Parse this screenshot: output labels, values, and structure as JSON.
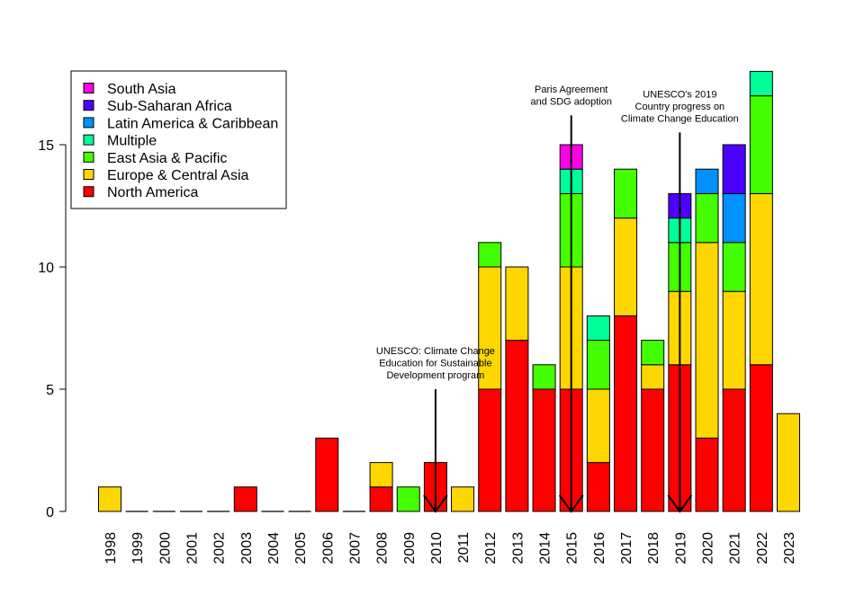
{
  "chart_data": {
    "type": "bar",
    "stacked": true,
    "title": "",
    "xlabel": "",
    "ylabel": "",
    "ylim": [
      0,
      18
    ],
    "y_ticks": [
      0,
      5,
      10,
      15
    ],
    "grid": false,
    "legend_position": "top-left",
    "categories": [
      "1998",
      "1999",
      "2000",
      "2001",
      "2002",
      "2003",
      "2004",
      "2005",
      "2006",
      "2007",
      "2008",
      "2009",
      "2010",
      "2011",
      "2012",
      "2013",
      "2014",
      "2015",
      "2016",
      "2017",
      "2018",
      "2019",
      "2020",
      "2021",
      "2022",
      "2023"
    ],
    "series": [
      {
        "name": "North America",
        "color": "#FF0000",
        "values": [
          0,
          0,
          0,
          0,
          0,
          1,
          0,
          0,
          3,
          0,
          1,
          0,
          2,
          0,
          5,
          7,
          5,
          5,
          2,
          8,
          5,
          6,
          3,
          5,
          6,
          0
        ]
      },
      {
        "name": "Europe & Central Asia",
        "color": "#FFD700",
        "values": [
          1,
          0,
          0,
          0,
          0,
          0,
          0,
          0,
          0,
          0,
          1,
          0,
          0,
          1,
          5,
          3,
          0,
          5,
          3,
          4,
          1,
          3,
          8,
          4,
          7,
          4
        ]
      },
      {
        "name": "East Asia & Pacific",
        "color": "#44FF00",
        "values": [
          0,
          0,
          0,
          0,
          0,
          0,
          0,
          0,
          0,
          0,
          0,
          1,
          0,
          0,
          1,
          0,
          1,
          3,
          2,
          2,
          1,
          2,
          2,
          2,
          4,
          0
        ]
      },
      {
        "name": "Multiple",
        "color": "#00FF99",
        "values": [
          0,
          0,
          0,
          0,
          0,
          0,
          0,
          0,
          0,
          0,
          0,
          0,
          0,
          0,
          0,
          0,
          0,
          1,
          1,
          0,
          0,
          1,
          0,
          0,
          1,
          0
        ]
      },
      {
        "name": "Latin America & Caribbean",
        "color": "#0091FF",
        "values": [
          0,
          0,
          0,
          0,
          0,
          0,
          0,
          0,
          0,
          0,
          0,
          0,
          0,
          0,
          0,
          0,
          0,
          0,
          0,
          0,
          0,
          0,
          1,
          2,
          0,
          0
        ]
      },
      {
        "name": "Sub-Saharan Africa",
        "color": "#4C00FF",
        "values": [
          0,
          0,
          0,
          0,
          0,
          0,
          0,
          0,
          0,
          0,
          0,
          0,
          0,
          0,
          0,
          0,
          0,
          0,
          0,
          0,
          0,
          1,
          0,
          2,
          0,
          0
        ]
      },
      {
        "name": "South Asia",
        "color": "#FF00E6",
        "values": [
          0,
          0,
          0,
          0,
          0,
          0,
          0,
          0,
          0,
          0,
          0,
          0,
          0,
          0,
          0,
          0,
          0,
          1,
          0,
          0,
          0,
          0,
          0,
          0,
          0,
          0
        ]
      }
    ],
    "legend_order": [
      "South Asia",
      "Sub-Saharan Africa",
      "Latin America & Caribbean",
      "Multiple",
      "East Asia & Pacific",
      "Europe & Central Asia",
      "North America"
    ],
    "annotations": [
      {
        "category": "2010",
        "from_y": 5,
        "to_y": 0,
        "lines": [
          "UNESCO: Climate Change",
          "Education for Sustainable",
          "Development program"
        ]
      },
      {
        "category": "2015",
        "from_y": 16.2,
        "to_y": 0,
        "lines": [
          "Paris Agreement",
          "and SDG adoption"
        ]
      },
      {
        "category": "2019",
        "from_y": 15.5,
        "to_y": 0,
        "lines": [
          "UNESCO's 2019",
          "Country progress on",
          "Climate Change Education"
        ]
      }
    ]
  }
}
